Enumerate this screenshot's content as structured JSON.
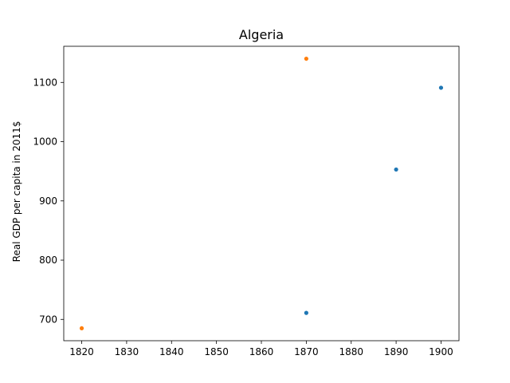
{
  "chart_data": {
    "type": "scatter",
    "title": "Algeria",
    "xlabel": "",
    "ylabel": "Real GDP per capita in 2011$",
    "xlim": [
      1816,
      1904
    ],
    "ylim": [
      664,
      1161
    ],
    "xticks": [
      1820,
      1830,
      1840,
      1850,
      1860,
      1870,
      1880,
      1890,
      1900
    ],
    "yticks": [
      700,
      800,
      900,
      1000,
      1100
    ],
    "grid": false,
    "legend": "none",
    "series": [
      {
        "color": "#1f77b4",
        "points": [
          {
            "x": 1870,
            "y": 711
          },
          {
            "x": 1890,
            "y": 953
          },
          {
            "x": 1900,
            "y": 1091
          }
        ]
      },
      {
        "color": "#ff7f0e",
        "points": [
          {
            "x": 1820,
            "y": 685
          },
          {
            "x": 1870,
            "y": 1140
          }
        ]
      }
    ]
  }
}
